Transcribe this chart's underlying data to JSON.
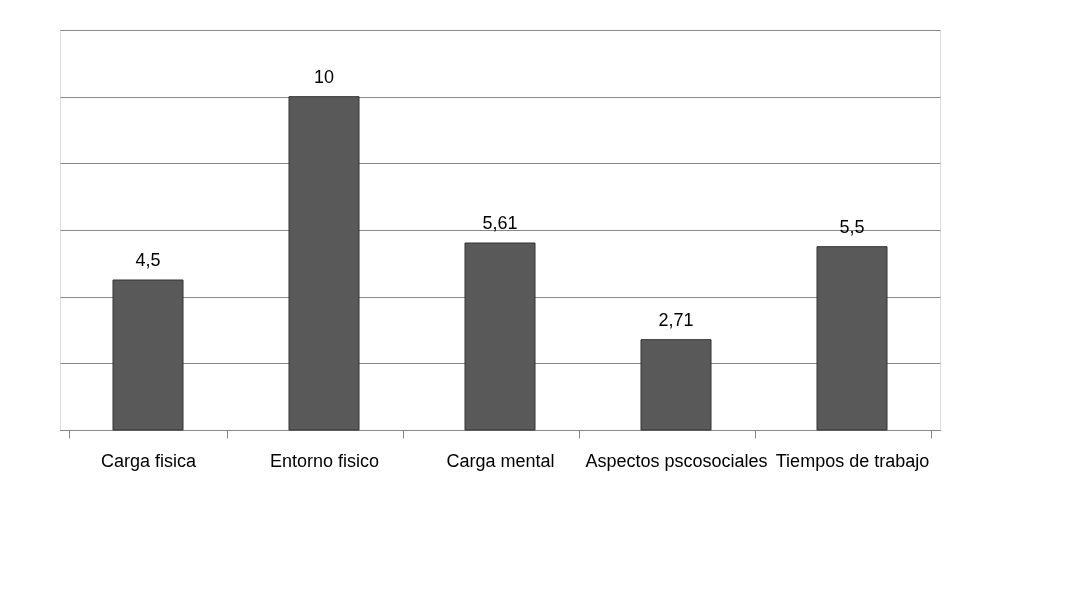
{
  "chart_data": {
    "type": "bar",
    "categories": [
      "Carga fisica",
      "Entorno fisico",
      "Carga mental",
      "Aspectos pscosociales",
      "Tiempos de trabajo"
    ],
    "values": [
      4.5,
      10,
      5.61,
      2.71,
      5.5
    ],
    "value_labels": [
      "4,5",
      "10",
      "5,61",
      "2,71",
      "5,5"
    ],
    "color": "#595959",
    "ylim": [
      0,
      12
    ],
    "yticks": [
      {
        "value": 0,
        "label": null
      },
      {
        "value": 2,
        "label": null
      },
      {
        "value": 4,
        "label": null
      },
      {
        "value": 6,
        "label": null
      },
      {
        "value": 8,
        "label": null
      },
      {
        "value": 10,
        "label": null
      },
      {
        "value": 12,
        "label": null
      }
    ],
    "grid": "y",
    "tick_labels": "x"
  }
}
